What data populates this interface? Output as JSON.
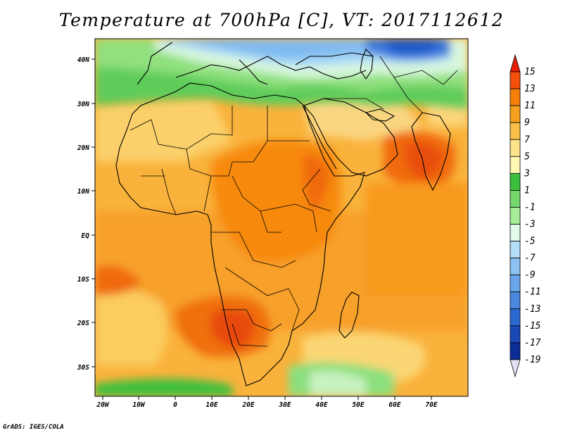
{
  "title": "Temperature at 700hPa [C], VT: 2017112612",
  "credit": "GrADS: IGES/COLA",
  "map": {
    "lon_labels": [
      "20W",
      "10W",
      "0",
      "10E",
      "20E",
      "30E",
      "40E",
      "50E",
      "60E",
      "70E"
    ],
    "lat_labels": [
      "40N",
      "30N",
      "20N",
      "10N",
      "EQ",
      "10S",
      "20S",
      "30S"
    ]
  },
  "colorbar": {
    "labels": [
      "15",
      "13",
      "11",
      "9",
      "7",
      "5",
      "3",
      "1",
      "-1",
      "-3",
      "-5",
      "-7",
      "-9",
      "-11",
      "-13",
      "-15",
      "-17",
      "-19"
    ],
    "colors": [
      "#e61e05",
      "#f5500a",
      "#f77f0a",
      "#f7a01e",
      "#f9bf46",
      "#fde48c",
      "#fff6b2",
      "#3cbf3c",
      "#75d66c",
      "#a8ee9a",
      "#e1fbe9",
      "#b4def8",
      "#8cc3f2",
      "#6aa6ea",
      "#4a87de",
      "#2c68d2",
      "#1a48b8",
      "#0c2c98",
      "#0a146e"
    ]
  }
}
